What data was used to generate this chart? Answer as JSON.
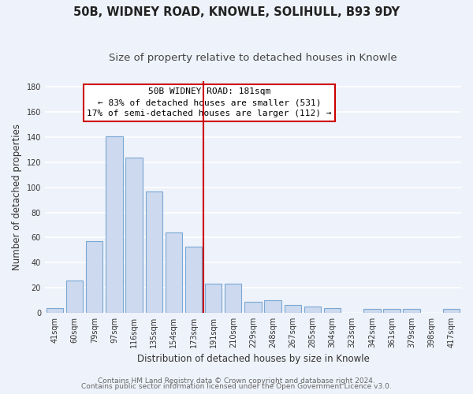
{
  "title": "50B, WIDNEY ROAD, KNOWLE, SOLIHULL, B93 9DY",
  "subtitle": "Size of property relative to detached houses in Knowle",
  "xlabel": "Distribution of detached houses by size in Knowle",
  "ylabel": "Number of detached properties",
  "bar_labels": [
    "41sqm",
    "60sqm",
    "79sqm",
    "97sqm",
    "116sqm",
    "135sqm",
    "154sqm",
    "173sqm",
    "191sqm",
    "210sqm",
    "229sqm",
    "248sqm",
    "267sqm",
    "285sqm",
    "304sqm",
    "323sqm",
    "342sqm",
    "361sqm",
    "379sqm",
    "398sqm",
    "417sqm"
  ],
  "bar_values": [
    4,
    26,
    57,
    141,
    124,
    97,
    64,
    53,
    23,
    23,
    9,
    10,
    6,
    5,
    4,
    0,
    3,
    3,
    3,
    0,
    3
  ],
  "bar_color": "#ccd9ee",
  "bar_edge_color": "#7aa8d4",
  "vline_x_index": 8,
  "vline_color": "#cc0000",
  "annotation_box_text": "50B WIDNEY ROAD: 181sqm\n← 83% of detached houses are smaller (531)\n17% of semi-detached houses are larger (112) →",
  "annotation_box_edge_color": "#cc0000",
  "annotation_box_face_color": "#ffffff",
  "ylim": [
    0,
    185
  ],
  "yticks": [
    0,
    20,
    40,
    60,
    80,
    100,
    120,
    140,
    160,
    180
  ],
  "footer_line1": "Contains HM Land Registry data © Crown copyright and database right 2024.",
  "footer_line2": "Contains public sector information licensed under the Open Government Licence v3.0.",
  "background_color": "#eef2fa",
  "grid_color": "#ffffff",
  "title_fontsize": 10.5,
  "subtitle_fontsize": 9.5,
  "tick_fontsize": 7,
  "ylabel_fontsize": 8.5,
  "xlabel_fontsize": 8.5,
  "footer_fontsize": 6.5
}
